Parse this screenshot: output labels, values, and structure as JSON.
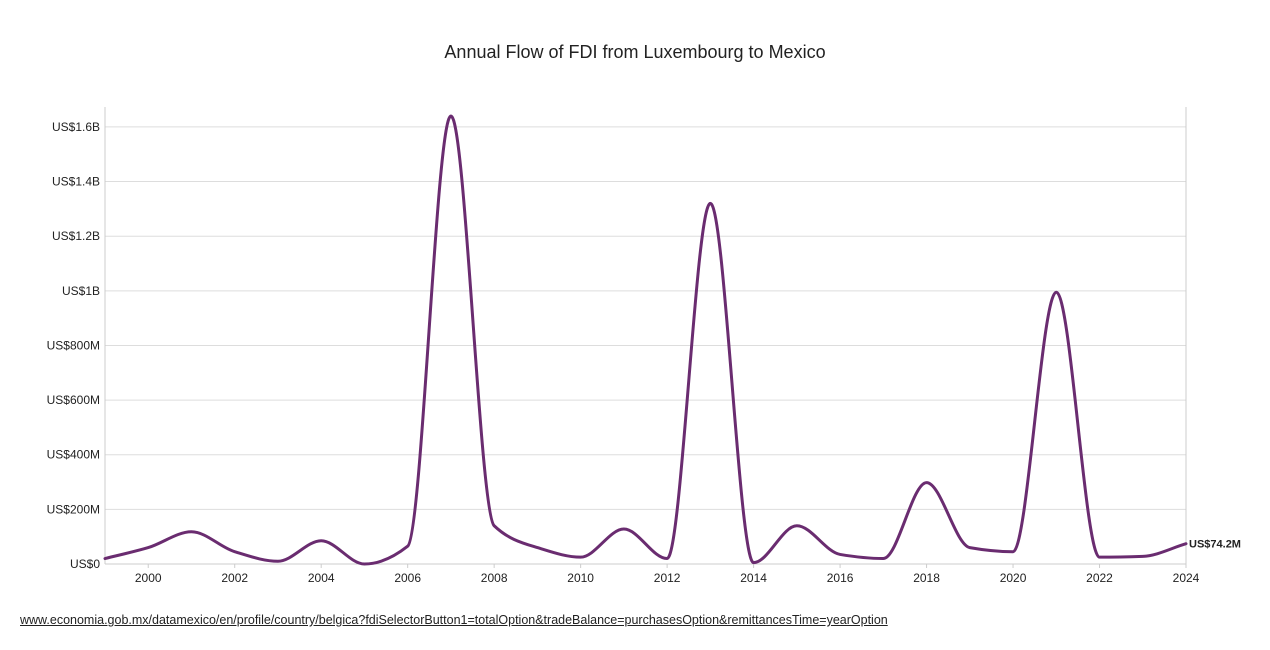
{
  "chart_data": {
    "type": "line",
    "title": "Annual Flow of FDI from Luxembourg to Mexico",
    "xlabel": "",
    "ylabel": "",
    "x": [
      1999,
      2000,
      2001,
      2002,
      2003,
      2004,
      2005,
      2006,
      2007,
      2008,
      2009,
      2010,
      2011,
      2012,
      2013,
      2014,
      2015,
      2016,
      2017,
      2018,
      2019,
      2020,
      2021,
      2022,
      2023,
      2024
    ],
    "series": [
      {
        "name": "Luxembourg",
        "color": "#6a2c70",
        "values": [
          20000000,
          60000000,
          118000000,
          45000000,
          10000000,
          85000000,
          0,
          65000000,
          1640000000,
          140000000,
          60000000,
          25000000,
          128000000,
          20000000,
          1320000000,
          5000000,
          140000000,
          35000000,
          20000000,
          298000000,
          60000000,
          45000000,
          995000000,
          25000000,
          28000000,
          74200000
        ]
      }
    ],
    "xticks": [
      "2000",
      "2002",
      "2004",
      "2006",
      "2008",
      "2010",
      "2012",
      "2014",
      "2016",
      "2018",
      "2020",
      "2022",
      "2024"
    ],
    "xlim": [
      1999,
      2024
    ],
    "ylim": [
      0,
      1700000000
    ],
    "yticks": [
      {
        "value": 0,
        "label": "US$0"
      },
      {
        "value": 200000000,
        "label": "US$200M"
      },
      {
        "value": 400000000,
        "label": "US$400M"
      },
      {
        "value": 600000000,
        "label": "US$600M"
      },
      {
        "value": 800000000,
        "label": "US$800M"
      },
      {
        "value": 1000000000,
        "label": "US$1B"
      },
      {
        "value": 1200000000,
        "label": "US$1.2B"
      },
      {
        "value": 1400000000,
        "label": "US$1.4B"
      },
      {
        "value": 1600000000,
        "label": "US$1.6B"
      }
    ],
    "grid": true,
    "end_label": "US$74.2M"
  },
  "source": {
    "url_text": "www.economia.gob.mx/datamexico/en/profile/country/belgica?fdiSelectorButton1=totalOption&tradeBalance=purchasesOption&remittancesTime=yearOption"
  }
}
